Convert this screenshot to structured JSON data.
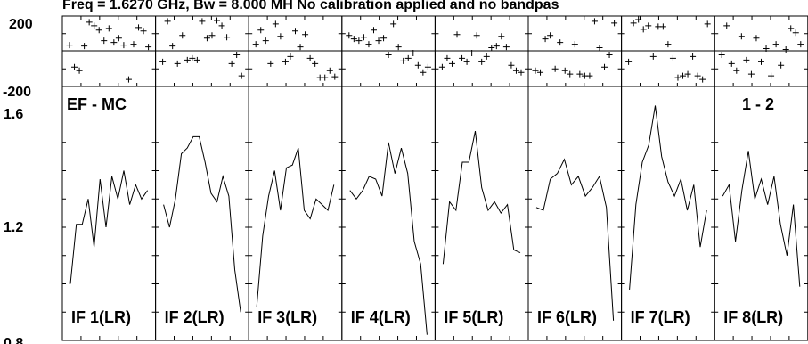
{
  "chart_data": {
    "type": "line",
    "title": "Freq = 1.6270 GHz, Bw = 8.000 MH  No calibration applied and no bandpas",
    "baseline_label": "EF - MC",
    "correlation_label": "1 - 2",
    "phase_panel": {
      "ylim": [
        -200,
        200
      ],
      "yticks": [
        "200",
        "-200"
      ],
      "series": [
        [
          35,
          -90,
          -110,
          30,
          165,
          145,
          120,
          60,
          130,
          50,
          75,
          35,
          -160,
          40,
          135,
          115,
          25
        ],
        [
          -60,
          170,
          30,
          -70,
          90,
          -50,
          -40,
          -50,
          170,
          75,
          90,
          175,
          145,
          80,
          -70,
          -20,
          -140
        ],
        [
          40,
          120,
          60,
          -70,
          155,
          85,
          -60,
          -30,
          115,
          25,
          95,
          -40,
          -70,
          -150,
          -150,
          -110,
          -145
        ],
        [
          90,
          70,
          60,
          80,
          40,
          120,
          60,
          75,
          -20,
          155,
          25,
          -55,
          -40,
          -10,
          -80,
          -120,
          -90
        ],
        [
          -90,
          -40,
          -70,
          95,
          -40,
          -60,
          -10,
          90,
          -60,
          -30,
          20,
          30,
          85,
          25,
          -80,
          -110,
          -120
        ],
        [
          -110,
          -120,
          70,
          90,
          -100,
          50,
          -110,
          -130,
          40,
          -130,
          -140,
          -140,
          170,
          20,
          -90,
          -20,
          160
        ],
        [
          -60,
          160,
          180,
          125,
          145,
          -30,
          140,
          140,
          40,
          -40,
          -150,
          -140,
          -130,
          -30,
          -140,
          -160,
          155
        ],
        [
          -20,
          145,
          -70,
          -110,
          85,
          -50,
          -130,
          75,
          -60,
          15,
          -140,
          40,
          -80,
          10,
          130,
          105,
          40
        ]
      ]
    },
    "amp_panel": {
      "ylim": [
        0.8,
        1.6
      ],
      "yticks": [
        "1.6",
        "1.2",
        "0.8"
      ],
      "series": [
        [
          1.0,
          1.21,
          1.21,
          1.3,
          1.13,
          1.37,
          1.2,
          1.38,
          1.3,
          1.4,
          1.28,
          1.35,
          1.3,
          1.33
        ],
        [
          1.28,
          1.2,
          1.3,
          1.46,
          1.48,
          1.52,
          1.52,
          1.43,
          1.32,
          1.29,
          1.38,
          1.31,
          1.05,
          0.9
        ],
        [
          0.92,
          1.17,
          1.31,
          1.4,
          1.26,
          1.41,
          1.42,
          1.48,
          1.26,
          1.23,
          1.3,
          1.28,
          1.26,
          1.35
        ],
        [
          1.33,
          1.3,
          1.33,
          1.38,
          1.37,
          1.31,
          1.5,
          1.39,
          1.48,
          1.39,
          1.15,
          1.07,
          0.82
        ],
        [
          1.07,
          1.29,
          1.26,
          1.43,
          1.43,
          1.54,
          1.34,
          1.26,
          1.29,
          1.25,
          1.28,
          1.12,
          1.11
        ],
        [
          1.27,
          1.26,
          1.37,
          1.39,
          1.44,
          1.35,
          1.38,
          1.31,
          1.34,
          1.38,
          1.27,
          0.87
        ],
        [
          0.98,
          1.28,
          1.43,
          1.49,
          1.63,
          1.45,
          1.36,
          1.31,
          1.37,
          1.26,
          1.35,
          1.13,
          1.26
        ],
        [
          1.31,
          1.35,
          1.15,
          1.33,
          1.47,
          1.3,
          1.37,
          1.28,
          1.38,
          1.21,
          1.1,
          1.28,
          0.99
        ]
      ]
    },
    "panels": [
      {
        "label": "IF 1(LR)"
      },
      {
        "label": "IF 2(LR)"
      },
      {
        "label": "IF 3(LR)"
      },
      {
        "label": "IF 4(LR)"
      },
      {
        "label": "IF 5(LR)"
      },
      {
        "label": "IF 6(LR)"
      },
      {
        "label": "IF 7(LR)"
      },
      {
        "label": "IF 8(LR)"
      }
    ]
  }
}
